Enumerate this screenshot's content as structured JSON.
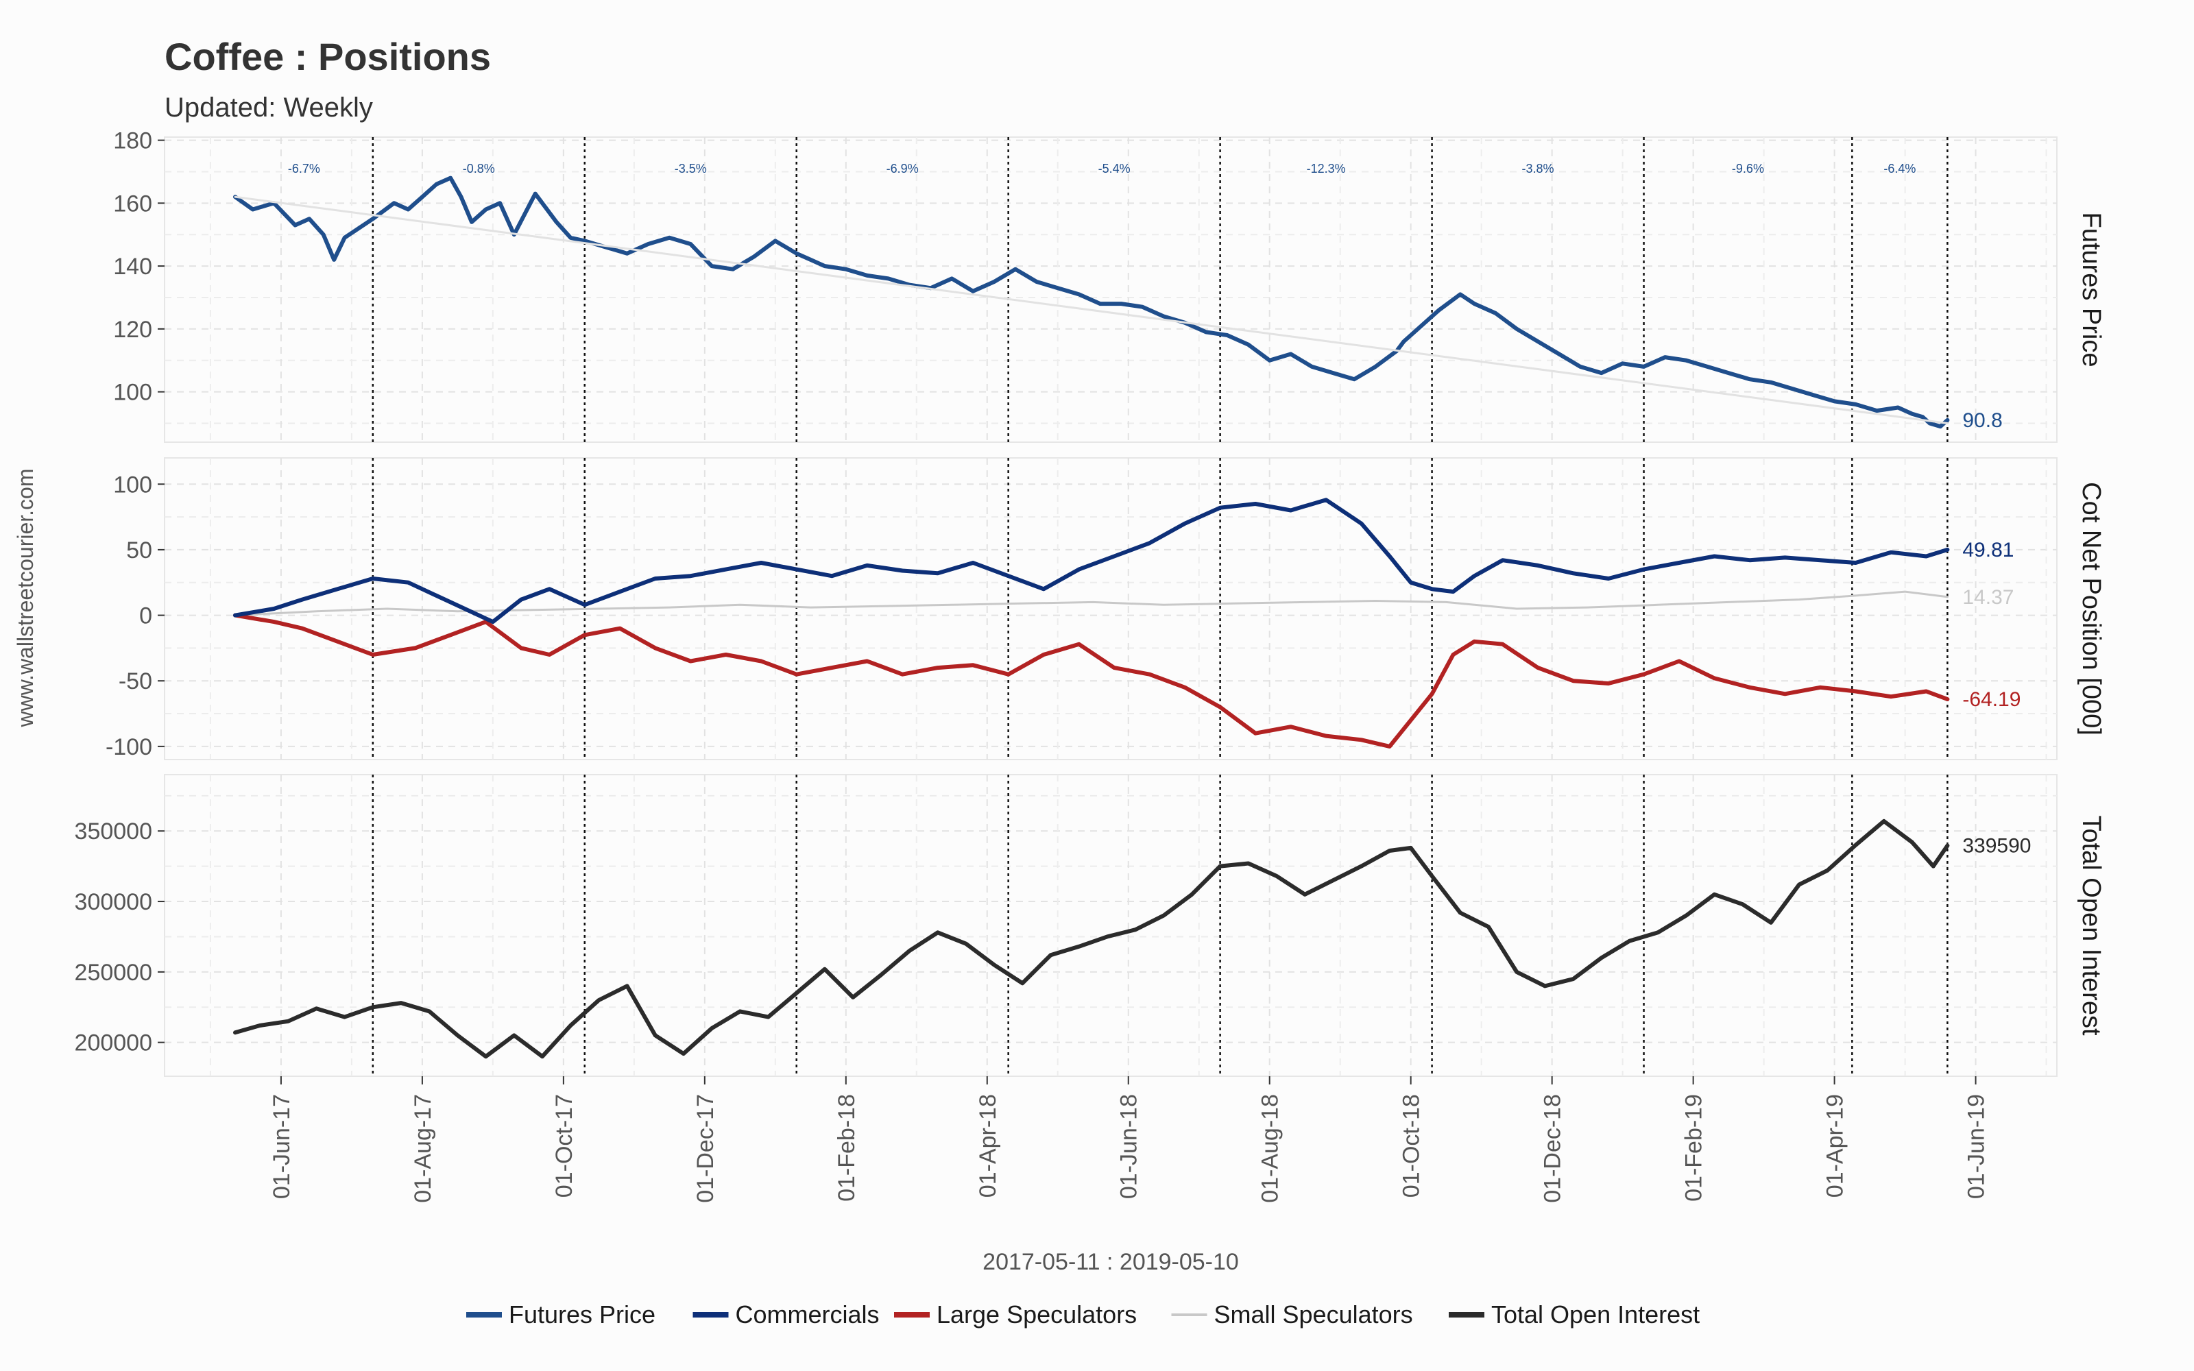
{
  "title": "Coffee : Positions",
  "subtitle": "Updated: Weekly",
  "watermark": "www.wallstreetcourier.com",
  "date_range": "2017-05-11 : 2019-05-10",
  "colors": {
    "futures": "#1f4e8c",
    "commercials": "#0d2f78",
    "large_spec": "#b22222",
    "small_spec": "#c8c8c8",
    "open_interest": "#2b2b2b"
  },
  "legend": [
    {
      "label": "Futures Price",
      "color": "#1f4e8c",
      "width": 8
    },
    {
      "label": "Commercials",
      "color": "#0d2f78",
      "width": 8
    },
    {
      "label": "Large Speculators",
      "color": "#b22222",
      "width": 8
    },
    {
      "label": "Small Speculators",
      "color": "#c8c8c8",
      "width": 4
    },
    {
      "label": "Total Open Interest",
      "color": "#2b2b2b",
      "width": 8
    }
  ],
  "chart_data": {
    "type": "line",
    "x_tick_labels": [
      "01-Jun-17",
      "01-Aug-17",
      "01-Oct-17",
      "01-Dec-17",
      "01-Feb-18",
      "01-Apr-18",
      "01-Jun-18",
      "01-Aug-18",
      "01-Oct-18",
      "01-Dec-18",
      "01-Feb-19",
      "01-Apr-19",
      "01-Jun-19"
    ],
    "x_tick_months": [
      1,
      3,
      5,
      7,
      9,
      11,
      13,
      15,
      17,
      19,
      21,
      23,
      25
    ],
    "x_range_months": [
      -0.65,
      26.15
    ],
    "data_start_month": 0.35,
    "data_end_month": 23.3,
    "quarter_markers": [
      2.3,
      5.3,
      8.3,
      11.3,
      14.3,
      17.3,
      20.3,
      23.25,
      24.6
    ],
    "panels": [
      {
        "id": "futures",
        "strip_label": "Futures Price",
        "ylim": [
          84,
          181
        ],
        "yticks": [
          100,
          120,
          140,
          160,
          180
        ],
        "period_changes": [
          "-6.7%",
          "-0.8%",
          "-3.5%",
          "-6.9%",
          "-5.4%",
          "-12.3%",
          "-3.8%",
          "-9.6%",
          "-6.4%"
        ],
        "series": [
          {
            "name": "Futures Price",
            "color": "#1f4e8c",
            "width": 6,
            "last_label": "90.8",
            "x": [
              0.35,
              0.6,
              0.9,
              1.2,
              1.4,
              1.6,
              1.75,
              1.9,
              2.1,
              2.3,
              2.6,
              2.8,
              3.0,
              3.2,
              3.4,
              3.55,
              3.7,
              3.9,
              4.1,
              4.3,
              4.6,
              4.9,
              5.1,
              5.3,
              5.6,
              5.9,
              6.2,
              6.5,
              6.8,
              7.1,
              7.4,
              7.7,
              8.0,
              8.3,
              8.5,
              8.7,
              9.0,
              9.3,
              9.6,
              9.9,
              10.2,
              10.5,
              10.8,
              11.1,
              11.4,
              11.7,
              12.0,
              12.3,
              12.6,
              12.9,
              13.2,
              13.5,
              13.8,
              14.1,
              14.4,
              14.7,
              15.0,
              15.3,
              15.6,
              15.9,
              16.2,
              16.5,
              16.8,
              16.9,
              17.1,
              17.4,
              17.7,
              17.9,
              18.2,
              18.5,
              18.8,
              19.1,
              19.4,
              19.7,
              20.0,
              20.3,
              20.6,
              20.9,
              21.2,
              21.5,
              21.8,
              22.1,
              22.4,
              22.7,
              23.0,
              23.3,
              23.6,
              23.9,
              24.1,
              24.25,
              24.35,
              24.5,
              24.6
            ],
            "y": [
              162,
              158,
              160,
              153,
              155,
              150,
              142,
              149,
              152,
              155,
              160,
              158,
              162,
              166,
              168,
              162,
              154,
              158,
              160,
              150,
              163,
              154,
              149,
              148,
              146,
              144,
              147,
              149,
              147,
              140,
              139,
              143,
              148,
              144,
              142,
              140,
              139,
              137,
              136,
              134,
              133,
              136,
              132,
              135,
              139,
              135,
              133,
              131,
              128,
              128,
              127,
              124,
              122,
              119,
              118,
              115,
              110,
              112,
              108,
              106,
              104,
              108,
              113,
              116,
              120,
              126,
              131,
              128,
              125,
              120,
              116,
              112,
              108,
              106,
              109,
              108,
              111,
              110,
              108,
              106,
              104,
              103,
              101,
              99,
              97,
              96,
              94,
              95,
              93,
              92,
              90,
              89,
              91
            ]
          },
          {
            "name": "Trend",
            "color": "#e2e2e2",
            "width": 3,
            "x": [
              0.35,
              24.6
            ],
            "y": [
              162,
              90
            ]
          }
        ]
      },
      {
        "id": "cot",
        "strip_label": "Cot Net Position [000]",
        "ylim": [
          -110,
          120
        ],
        "yticks": [
          -100,
          -50,
          0,
          50,
          100
        ],
        "series": [
          {
            "name": "Small Speculators",
            "color": "#c8c8c8",
            "width": 3,
            "last_label": "14.37",
            "x": [
              0.35,
              1.5,
              2.5,
              3.5,
              4.5,
              5.5,
              6.5,
              7.5,
              8.5,
              9.5,
              10.5,
              11.5,
              12.5,
              13.5,
              14.5,
              15.5,
              16.5,
              17.5,
              18.5,
              19.5,
              20.5,
              21.5,
              22.5,
              23.3,
              24.0,
              24.6
            ],
            "y": [
              0,
              3,
              5,
              3,
              4,
              5,
              6,
              8,
              6,
              7,
              8,
              9,
              10,
              8,
              9,
              10,
              11,
              10,
              5,
              6,
              8,
              10,
              12,
              15,
              18,
              14
            ]
          },
          {
            "name": "Large Speculators",
            "color": "#b22222",
            "width": 6,
            "last_label": "-64.19",
            "x": [
              0.35,
              0.9,
              1.3,
              1.8,
              2.3,
              2.9,
              3.4,
              3.9,
              4.4,
              4.8,
              5.3,
              5.8,
              6.3,
              6.8,
              7.3,
              7.8,
              8.3,
              8.8,
              9.3,
              9.8,
              10.3,
              10.8,
              11.3,
              11.8,
              12.3,
              12.8,
              13.3,
              13.8,
              14.3,
              14.8,
              15.3,
              15.8,
              16.3,
              16.7,
              17.0,
              17.3,
              17.6,
              17.9,
              18.3,
              18.8,
              19.3,
              19.8,
              20.3,
              20.8,
              21.3,
              21.8,
              22.3,
              22.8,
              23.3,
              23.8,
              24.3,
              24.6
            ],
            "y": [
              0,
              -5,
              -10,
              -20,
              -30,
              -25,
              -15,
              -5,
              -25,
              -30,
              -15,
              -10,
              -25,
              -35,
              -30,
              -35,
              -45,
              -40,
              -35,
              -45,
              -40,
              -38,
              -45,
              -30,
              -22,
              -40,
              -45,
              -55,
              -70,
              -90,
              -85,
              -92,
              -95,
              -100,
              -80,
              -60,
              -30,
              -20,
              -22,
              -40,
              -50,
              -52,
              -45,
              -35,
              -48,
              -55,
              -60,
              -55,
              -58,
              -62,
              -58,
              -64
            ]
          },
          {
            "name": "Commercials",
            "color": "#0d2f78",
            "width": 6,
            "last_label": "49.81",
            "x": [
              0.35,
              0.9,
              1.3,
              1.8,
              2.3,
              2.8,
              3.2,
              3.6,
              4.0,
              4.4,
              4.8,
              5.3,
              5.8,
              6.3,
              6.8,
              7.3,
              7.8,
              8.3,
              8.8,
              9.3,
              9.8,
              10.3,
              10.8,
              11.3,
              11.8,
              12.3,
              12.8,
              13.3,
              13.8,
              14.3,
              14.8,
              15.3,
              15.8,
              16.3,
              16.7,
              17.0,
              17.3,
              17.6,
              17.9,
              18.3,
              18.8,
              19.3,
              19.8,
              20.3,
              20.8,
              21.3,
              21.8,
              22.3,
              22.8,
              23.3,
              23.8,
              24.3,
              24.6
            ],
            "y": [
              0,
              5,
              12,
              20,
              28,
              25,
              15,
              5,
              -5,
              12,
              20,
              8,
              18,
              28,
              30,
              35,
              40,
              35,
              30,
              38,
              34,
              32,
              40,
              30,
              20,
              35,
              45,
              55,
              70,
              82,
              85,
              80,
              88,
              70,
              45,
              25,
              20,
              18,
              30,
              42,
              38,
              32,
              28,
              35,
              40,
              45,
              42,
              44,
              42,
              40,
              48,
              45,
              50
            ]
          }
        ]
      },
      {
        "id": "oi",
        "strip_label": "Total Open Interest",
        "ylim": [
          176000,
          390000
        ],
        "yticks": [
          200000,
          250000,
          300000,
          350000
        ],
        "series": [
          {
            "name": "Total Open Interest",
            "color": "#2b2b2b",
            "width": 6,
            "last_label": "339590",
            "x": [
              0.35,
              0.7,
              1.1,
              1.5,
              1.9,
              2.3,
              2.7,
              3.1,
              3.5,
              3.9,
              4.3,
              4.7,
              5.1,
              5.5,
              5.9,
              6.3,
              6.7,
              7.1,
              7.5,
              7.9,
              8.3,
              8.7,
              9.1,
              9.5,
              9.9,
              10.3,
              10.7,
              11.1,
              11.5,
              11.9,
              12.3,
              12.7,
              13.1,
              13.5,
              13.9,
              14.3,
              14.7,
              15.1,
              15.5,
              15.9,
              16.3,
              16.7,
              17.0,
              17.3,
              17.7,
              18.1,
              18.5,
              18.9,
              19.3,
              19.7,
              20.1,
              20.5,
              20.9,
              21.3,
              21.7,
              22.1,
              22.5,
              22.9,
              23.3,
              23.7,
              24.1,
              24.4,
              24.6
            ],
            "y": [
              207000,
              212000,
              215000,
              224000,
              218000,
              225000,
              228000,
              222000,
              205000,
              190000,
              205000,
              190000,
              212000,
              230000,
              240000,
              205000,
              192000,
              210000,
              222000,
              218000,
              235000,
              252000,
              232000,
              248000,
              265000,
              278000,
              270000,
              255000,
              242000,
              262000,
              268000,
              275000,
              280000,
              290000,
              305000,
              325000,
              327000,
              318000,
              305000,
              315000,
              325000,
              336000,
              338000,
              318000,
              292000,
              282000,
              250000,
              240000,
              245000,
              260000,
              272000,
              278000,
              290000,
              305000,
              298000,
              285000,
              312000,
              322000,
              340000,
              357000,
              342000,
              325000,
              339590
            ]
          }
        ]
      }
    ]
  }
}
